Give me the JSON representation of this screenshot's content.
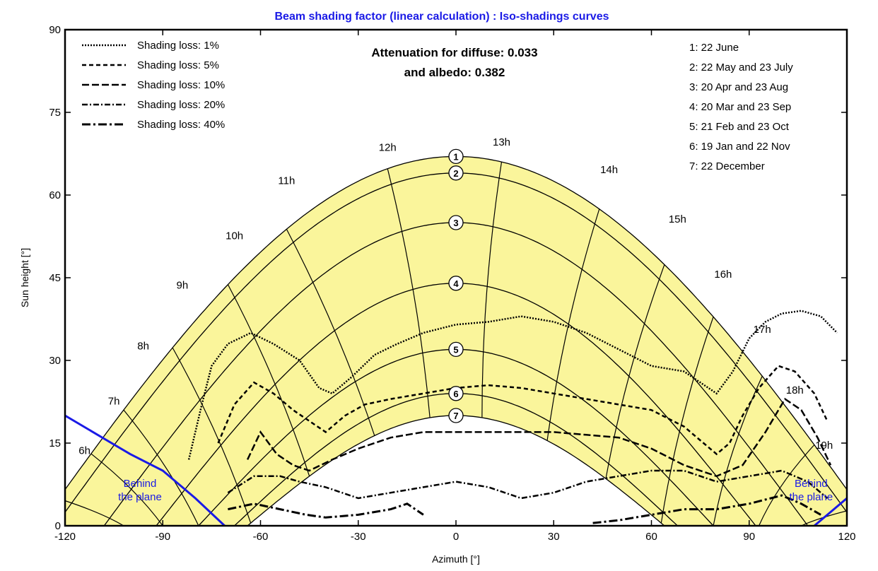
{
  "chart_data": {
    "type": "line",
    "title": "Beam shading factor (linear calculation) : Iso-shadings curves",
    "xlabel": "Azimuth [°]",
    "ylabel": "Sun height [°]",
    "xlim": [
      -120,
      120
    ],
    "ylim": [
      0,
      90
    ],
    "xticks": [
      "-120",
      "-90",
      "-60",
      "-30",
      "0",
      "30",
      "60",
      "90",
      "120"
    ],
    "yticks": [
      "0",
      "15",
      "30",
      "45",
      "60",
      "75",
      "90"
    ],
    "colors": {
      "region": "#faf59b",
      "background": "#ffffff",
      "horizon": "#1a1ae6",
      "title": "#1a1ae6"
    },
    "attenuation": {
      "line1": "Attenuation for diffuse: 0.033",
      "line2": "and albedo: 0.382"
    },
    "legend_position": "top-left",
    "legend": [
      {
        "label": "Shading loss: 1%",
        "dash": "2,2",
        "width": 2.5
      },
      {
        "label": "Shading loss: 5%",
        "dash": "6,4",
        "width": 2.5
      },
      {
        "label": "Shading loss: 10%",
        "dash": "10,4",
        "width": 2.5
      },
      {
        "label": "Shading loss: 20%",
        "dash": "8,3,2,3",
        "width": 2.5
      },
      {
        "label": "Shading loss: 40%",
        "dash": "12,4,3,4",
        "width": 3
      }
    ],
    "date_legend": [
      "1: 22 June",
      "2: 22 May and 23 July",
      "3: 20 Apr and 23 Aug",
      "4: 20 Mar and 23 Sep",
      "5: 21 Feb and 23 Oct",
      "6: 19 Jan and 22 Nov",
      "7: 22 December"
    ],
    "sun_paths": [
      {
        "id": "1",
        "peak": 67,
        "half_width": 128
      },
      {
        "id": "2",
        "peak": 64,
        "half_width": 123
      },
      {
        "id": "3",
        "peak": 55,
        "half_width": 108
      },
      {
        "id": "4",
        "peak": 44,
        "half_width": 92
      },
      {
        "id": "5",
        "peak": 32,
        "half_width": 79
      },
      {
        "id": "6",
        "peak": 24,
        "half_width": 68
      },
      {
        "id": "7",
        "peak": 20,
        "half_width": 64
      }
    ],
    "hour_labels": [
      {
        "label": "6h",
        "x": -114,
        "y": 13
      },
      {
        "label": "7h",
        "x": -105,
        "y": 22
      },
      {
        "label": "8h",
        "x": -96,
        "y": 32
      },
      {
        "label": "9h",
        "x": -84,
        "y": 43
      },
      {
        "label": "10h",
        "x": -68,
        "y": 52
      },
      {
        "label": "11h",
        "x": -52,
        "y": 62
      },
      {
        "label": "12h",
        "x": -21,
        "y": 68
      },
      {
        "label": "13h",
        "x": 14,
        "y": 69
      },
      {
        "label": "14h",
        "x": 47,
        "y": 64
      },
      {
        "label": "15h",
        "x": 68,
        "y": 55
      },
      {
        "label": "16h",
        "x": 82,
        "y": 45
      },
      {
        "label": "17h",
        "x": 94,
        "y": 35
      },
      {
        "label": "18h",
        "x": 104,
        "y": 24
      },
      {
        "label": "19h",
        "x": 113,
        "y": 14
      }
    ],
    "hour_lines": [
      {
        "x_low": -102,
        "x_high": -122
      },
      {
        "x_low": -90,
        "x_high": -112
      },
      {
        "x_low": -79,
        "x_high": -102
      },
      {
        "x_low": -63,
        "x_high": -87
      },
      {
        "x_low": -45,
        "x_high": -70
      },
      {
        "x_low": -25,
        "x_high": -52
      },
      {
        "x_low": -8,
        "x_high": -21
      },
      {
        "x_low": 8,
        "x_high": 14
      },
      {
        "x_low": 28,
        "x_high": 44
      },
      {
        "x_low": 46,
        "x_high": 64
      },
      {
        "x_low": 63,
        "x_high": 79
      },
      {
        "x_low": 79,
        "x_high": 94
      },
      {
        "x_low": 93,
        "x_high": 110
      },
      {
        "x_low": 106,
        "x_high": 124
      }
    ],
    "horizon": {
      "left": [
        [
          -120,
          20
        ],
        [
          -100,
          13
        ],
        [
          -90,
          10
        ],
        [
          -80,
          5
        ],
        [
          -71,
          0
        ]
      ],
      "right": [
        [
          110,
          0
        ],
        [
          116,
          3
        ],
        [
          120,
          5
        ]
      ]
    },
    "behind_plane": [
      {
        "line1": "Behind",
        "line2": "the plane",
        "x": -97,
        "y": 6
      },
      {
        "line1": "Behind",
        "line2": "the plane",
        "x": 109,
        "y": 6
      }
    ],
    "iso_curves": [
      {
        "loss": "1%",
        "points": [
          [
            -82,
            12
          ],
          [
            -78,
            22
          ],
          [
            -75,
            29
          ],
          [
            -70,
            33
          ],
          [
            -63,
            35
          ],
          [
            -56,
            33
          ],
          [
            -48,
            30
          ],
          [
            -42,
            25
          ],
          [
            -38,
            24
          ],
          [
            -32,
            27
          ],
          [
            -25,
            31
          ],
          [
            -18,
            33
          ],
          [
            -10,
            35
          ],
          [
            0,
            36.5
          ],
          [
            10,
            37
          ],
          [
            20,
            38
          ],
          [
            30,
            37
          ],
          [
            40,
            35
          ],
          [
            50,
            32
          ],
          [
            60,
            29
          ],
          [
            70,
            28
          ],
          [
            75,
            26
          ],
          [
            80,
            24
          ],
          [
            85,
            28
          ],
          [
            90,
            34
          ],
          [
            95,
            37
          ],
          [
            100,
            38.5
          ],
          [
            106,
            39
          ],
          [
            112,
            38
          ],
          [
            117,
            35
          ]
        ]
      },
      {
        "loss": "5%",
        "points": [
          [
            -73,
            15
          ],
          [
            -68,
            22
          ],
          [
            -62,
            26
          ],
          [
            -56,
            24
          ],
          [
            -50,
            21
          ],
          [
            -45,
            19
          ],
          [
            -40,
            17
          ],
          [
            -34,
            20
          ],
          [
            -28,
            22
          ],
          [
            -20,
            23
          ],
          [
            -10,
            24
          ],
          [
            0,
            25
          ],
          [
            10,
            25.5
          ],
          [
            20,
            25
          ],
          [
            30,
            24
          ],
          [
            40,
            23
          ],
          [
            50,
            22
          ],
          [
            60,
            21
          ],
          [
            70,
            18
          ],
          [
            76,
            15
          ],
          [
            80,
            13
          ],
          [
            84,
            15
          ],
          [
            88,
            20
          ],
          [
            93,
            25
          ],
          [
            99,
            29
          ],
          [
            104,
            28
          ],
          [
            110,
            24
          ],
          [
            114,
            19
          ]
        ]
      },
      {
        "loss": "10%",
        "points": [
          [
            -64,
            12
          ],
          [
            -60,
            17
          ],
          [
            -55,
            13
          ],
          [
            -50,
            11
          ],
          [
            -45,
            10
          ],
          [
            -38,
            12
          ],
          [
            -30,
            14
          ],
          [
            -20,
            16
          ],
          [
            -10,
            17
          ],
          [
            0,
            17
          ],
          [
            10,
            17
          ],
          [
            20,
            17
          ],
          [
            30,
            17
          ],
          [
            40,
            16.5
          ],
          [
            50,
            16
          ],
          [
            60,
            14
          ],
          [
            70,
            11
          ],
          [
            80,
            9
          ],
          [
            88,
            11
          ],
          [
            95,
            17
          ],
          [
            101,
            23
          ],
          [
            106,
            21
          ],
          [
            111,
            16
          ],
          [
            115,
            11
          ]
        ]
      },
      {
        "loss": "20%",
        "points": [
          [
            -70,
            6
          ],
          [
            -62,
            9
          ],
          [
            -54,
            9
          ],
          [
            -48,
            8
          ],
          [
            -40,
            7
          ],
          [
            -30,
            5
          ],
          [
            -20,
            6
          ],
          [
            -10,
            7
          ],
          [
            0,
            8
          ],
          [
            10,
            7
          ],
          [
            20,
            5
          ],
          [
            30,
            6
          ],
          [
            40,
            8
          ],
          [
            50,
            9
          ],
          [
            60,
            10
          ],
          [
            70,
            10
          ],
          [
            80,
            8
          ],
          [
            90,
            9
          ],
          [
            100,
            10
          ],
          [
            108,
            8
          ],
          [
            114,
            5
          ]
        ]
      },
      {
        "loss": "40%",
        "points": [
          [
            -70,
            3
          ],
          [
            -62,
            4
          ],
          [
            -54,
            3
          ],
          [
            -46,
            2
          ],
          [
            -40,
            1.5
          ],
          [
            -30,
            2
          ],
          [
            -20,
            3
          ],
          [
            -15,
            4
          ],
          [
            -10,
            2
          ]
        ]
      },
      {
        "loss": "40%",
        "points": [
          [
            42,
            0.5
          ],
          [
            50,
            1
          ],
          [
            60,
            2
          ],
          [
            70,
            3
          ],
          [
            80,
            3
          ],
          [
            90,
            4
          ],
          [
            100,
            5.5
          ],
          [
            106,
            4
          ],
          [
            112,
            2
          ]
        ]
      }
    ]
  }
}
